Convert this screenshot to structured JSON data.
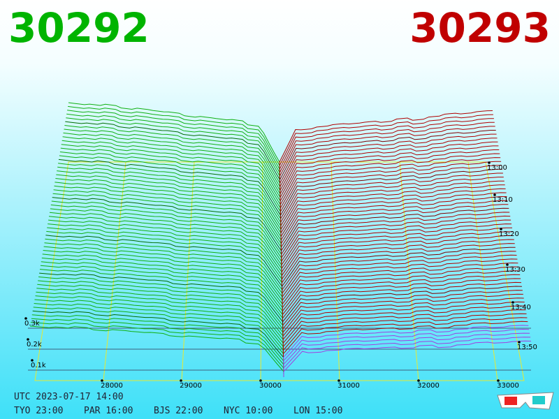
{
  "bid": "30292",
  "ask": "30293",
  "price_labels": [
    "28000",
    "29000",
    "30000",
    "31000",
    "32000",
    "33000"
  ],
  "volume_labels": [
    "0.3k",
    "0.2k",
    "0.1k"
  ],
  "time_labels": [
    "13:00",
    "13:10",
    "13:20",
    "13:30",
    "13:40",
    "13:50"
  ],
  "utc": "UTC 2023-07-17 14:00",
  "clocks": [
    "TYO 23:00",
    "PAR 16:00",
    "BJS 22:00",
    "NYC 10:00",
    "LON 15:00"
  ]
}
